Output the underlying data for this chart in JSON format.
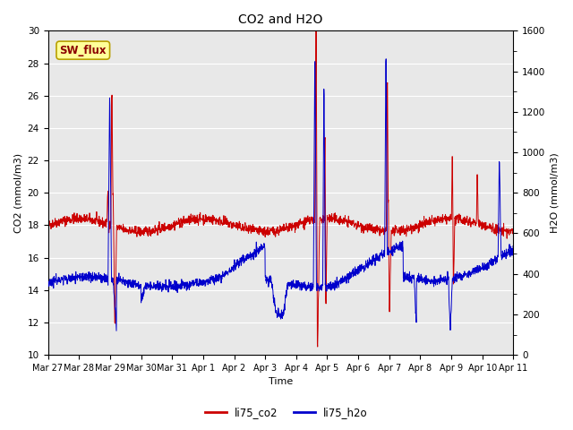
{
  "title": "CO2 and H2O",
  "xlabel": "Time",
  "ylabel_left": "CO2 (mmol/m3)",
  "ylabel_right": "H2O (mmol/m3)",
  "annotation_text": "SW_flux",
  "annotation_color": "#8B0000",
  "annotation_bg": "#FFFF99",
  "annotation_border": "#B8A000",
  "ylim_left": [
    10,
    30
  ],
  "ylim_right": [
    0,
    1600
  ],
  "yticks_left": [
    10,
    12,
    14,
    16,
    18,
    20,
    22,
    24,
    26,
    28,
    30
  ],
  "yticks_right": [
    0,
    200,
    400,
    600,
    800,
    1000,
    1200,
    1400,
    1600
  ],
  "xtick_labels": [
    "Mar 27",
    "Mar 28",
    "Mar 29",
    "Mar 30",
    "Mar 31",
    "Apr 1",
    "Apr 2",
    "Apr 3",
    "Apr 4",
    "Apr 5",
    "Apr 6",
    "Apr 7",
    "Apr 8",
    "Apr 9",
    "Apr 10",
    "Apr 11"
  ],
  "bg_color": "#E8E8E8",
  "co2_color": "#CC0000",
  "h2o_color": "#0000CC",
  "legend_labels": [
    "li75_co2",
    "li75_h2o"
  ],
  "legend_colors": [
    "#CC0000",
    "#0000CC"
  ]
}
